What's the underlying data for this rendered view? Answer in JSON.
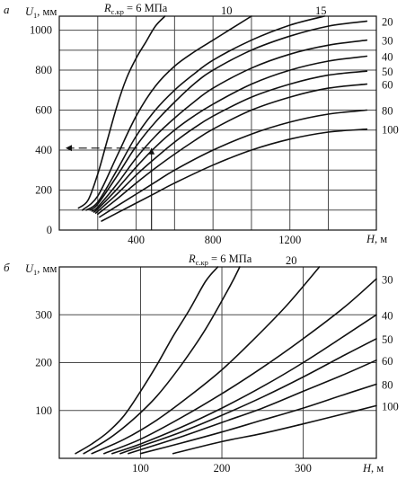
{
  "chart_data": [
    {
      "panel": "a",
      "type": "line",
      "xlabel": "H, м",
      "ylabel": "U1, мм",
      "xlim": [
        0,
        1650
      ],
      "ylim": [
        0,
        1070
      ],
      "xticks": [
        400,
        800,
        1200
      ],
      "yticks": [
        0,
        200,
        400,
        600,
        800,
        1000
      ],
      "legend_title": "Rс.кр = 6 МПа",
      "series": [
        {
          "name": "6",
          "x": [
            100,
            150,
            200,
            250,
            300,
            350,
            400,
            450,
            500,
            550
          ],
          "y": [
            110,
            150,
            280,
            450,
            620,
            760,
            860,
            940,
            1020,
            1070
          ]
        },
        {
          "name": "10",
          "x": [
            120,
            200,
            300,
            400,
            500,
            600,
            700,
            800,
            900,
            1000
          ],
          "y": [
            100,
            170,
            370,
            570,
            720,
            820,
            890,
            950,
            1010,
            1070
          ]
        },
        {
          "name": "15",
          "x": [
            140,
            200,
            300,
            400,
            500,
            600,
            700,
            800,
            1000,
            1200,
            1380
          ],
          "y": [
            100,
            140,
            300,
            470,
            600,
            700,
            780,
            850,
            950,
            1025,
            1070
          ]
        },
        {
          "name": "20",
          "x": [
            160,
            200,
            300,
            400,
            500,
            600,
            700,
            800,
            1000,
            1200,
            1400,
            1600
          ],
          "y": [
            100,
            130,
            270,
            420,
            540,
            640,
            730,
            800,
            900,
            970,
            1020,
            1045
          ]
        },
        {
          "name": "30",
          "x": [
            170,
            200,
            300,
            400,
            500,
            600,
            700,
            800,
            1000,
            1200,
            1400,
            1600
          ],
          "y": [
            95,
            115,
            230,
            360,
            470,
            560,
            640,
            710,
            810,
            880,
            925,
            950
          ]
        },
        {
          "name": "40",
          "x": [
            180,
            200,
            300,
            400,
            500,
            600,
            700,
            800,
            1000,
            1200,
            1400,
            1600
          ],
          "y": [
            90,
            105,
            205,
            315,
            415,
            500,
            570,
            630,
            730,
            800,
            845,
            870
          ]
        },
        {
          "name": "50",
          "x": [
            190,
            300,
            400,
            500,
            600,
            700,
            800,
            1000,
            1200,
            1400,
            1600
          ],
          "y": [
            85,
            180,
            275,
            360,
            440,
            510,
            570,
            665,
            730,
            775,
            795
          ]
        },
        {
          "name": "60",
          "x": [
            200,
            300,
            400,
            500,
            600,
            700,
            800,
            1000,
            1200,
            1400,
            1600
          ],
          "y": [
            80,
            155,
            235,
            310,
            380,
            445,
            505,
            600,
            665,
            710,
            730
          ]
        },
        {
          "name": "80",
          "x": [
            210,
            300,
            400,
            500,
            600,
            800,
            1000,
            1200,
            1400,
            1600
          ],
          "y": [
            65,
            120,
            180,
            240,
            300,
            400,
            480,
            540,
            580,
            600
          ]
        },
        {
          "name": "100",
          "x": [
            220,
            300,
            400,
            500,
            600,
            800,
            1000,
            1200,
            1400,
            1600
          ],
          "y": [
            45,
            85,
            135,
            185,
            235,
            325,
            400,
            455,
            490,
            505
          ]
        }
      ],
      "annotation": {
        "x": 480,
        "y": 410
      }
    },
    {
      "panel": "б",
      "type": "line",
      "xlabel": "H, м",
      "ylabel": "U1, мм",
      "xlim": [
        0,
        390
      ],
      "ylim": [
        0,
        400
      ],
      "xticks": [
        100,
        200,
        300
      ],
      "yticks": [
        100,
        200,
        300
      ],
      "legend_title": "Rс.кр = 6 МПа",
      "series": [
        {
          "name": "6",
          "x": [
            20,
            40,
            60,
            80,
            100,
            120,
            140,
            160,
            180,
            195
          ],
          "y": [
            10,
            30,
            55,
            90,
            140,
            195,
            255,
            310,
            370,
            400
          ]
        },
        {
          "name": "10",
          "x": [
            30,
            60,
            90,
            120,
            150,
            180,
            210,
            222
          ],
          "y": [
            10,
            40,
            80,
            130,
            195,
            270,
            360,
            400
          ]
        },
        {
          "name": "20",
          "x": [
            40,
            80,
            120,
            160,
            200,
            240,
            280,
            320
          ],
          "y": [
            10,
            40,
            80,
            130,
            185,
            250,
            320,
            400
          ]
        },
        {
          "name": "30",
          "x": [
            55,
            100,
            150,
            200,
            250,
            300,
            350,
            390
          ],
          "y": [
            10,
            40,
            85,
            135,
            190,
            250,
            315,
            375
          ]
        },
        {
          "name": "40",
          "x": [
            65,
            100,
            150,
            200,
            250,
            300,
            350,
            390
          ],
          "y": [
            10,
            30,
            65,
            105,
            150,
            200,
            255,
            300
          ]
        },
        {
          "name": "50",
          "x": [
            75,
            100,
            150,
            200,
            250,
            300,
            350,
            390
          ],
          "y": [
            10,
            25,
            55,
            90,
            128,
            170,
            215,
            250
          ]
        },
        {
          "name": "60",
          "x": [
            85,
            100,
            150,
            200,
            250,
            300,
            350,
            390
          ],
          "y": [
            10,
            18,
            45,
            75,
            105,
            140,
            175,
            205
          ]
        },
        {
          "name": "80",
          "x": [
            100,
            150,
            200,
            250,
            300,
            350,
            390
          ],
          "y": [
            10,
            32,
            55,
            80,
            105,
            133,
            155
          ]
        },
        {
          "name": "100",
          "x": [
            140,
            200,
            250,
            300,
            350,
            390
          ],
          "y": [
            10,
            35,
            52,
            72,
            93,
            110
          ]
        }
      ]
    }
  ]
}
